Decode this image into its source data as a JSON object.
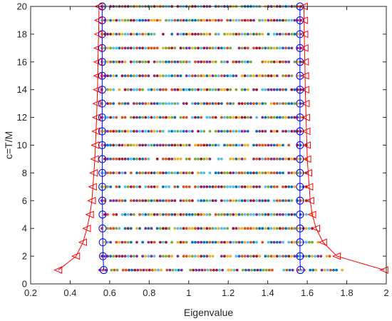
{
  "chart_data": {
    "type": "scatter",
    "title": "",
    "xlabel": "Eigenvalue",
    "ylabel": "c=T/M",
    "xlim": [
      0.2,
      2
    ],
    "ylim": [
      0,
      20
    ],
    "xticks": [
      "0.2",
      "0.4",
      "0.6",
      "0.8",
      "1",
      "1.2",
      "1.4",
      "1.6",
      "1.8",
      "2"
    ],
    "yticks": [
      "0",
      "2",
      "4",
      "6",
      "8",
      "10",
      "12",
      "14",
      "16",
      "18",
      "20"
    ],
    "grid": false,
    "legend": "none",
    "point_colors": [
      "#0072BD",
      "#D95319",
      "#EDB120",
      "#7E2F8E",
      "#77AC30",
      "#4DBEEE",
      "#A2142F"
    ],
    "series": [
      {
        "marker": "circle",
        "color": "#0000FF",
        "x": [
          0.57,
          0.566,
          0.565,
          0.564,
          0.564,
          0.563,
          0.563,
          0.563,
          0.563,
          0.562,
          0.562,
          0.562,
          0.562,
          0.562,
          0.562,
          0.562,
          0.562,
          0.562,
          0.562,
          0.562
        ],
        "y": [
          1,
          2,
          3,
          4,
          5,
          6,
          7,
          8,
          9,
          10,
          11,
          12,
          13,
          14,
          15,
          16,
          17,
          18,
          19,
          20
        ]
      },
      {
        "marker": "circle",
        "color": "#0000FF",
        "x": [
          1.565,
          1.563,
          1.563,
          1.563,
          1.563,
          1.563,
          1.563,
          1.563,
          1.563,
          1.563,
          1.563,
          1.563,
          1.563,
          1.563,
          1.563,
          1.563,
          1.563,
          1.563,
          1.563,
          1.563
        ],
        "y": [
          1,
          2,
          3,
          4,
          5,
          6,
          7,
          8,
          9,
          10,
          11,
          12,
          13,
          14,
          15,
          16,
          17,
          18,
          19,
          20
        ]
      },
      {
        "marker": "triangle-left",
        "color": "#FF0000",
        "x": [
          0.34,
          0.43,
          0.465,
          0.485,
          0.5,
          0.51,
          0.515,
          0.52,
          0.525,
          0.528,
          0.531,
          0.534,
          0.536,
          0.538,
          0.54,
          0.541,
          0.542,
          0.544,
          0.545,
          0.546
        ],
        "y": [
          1,
          2,
          3,
          4,
          5,
          6,
          7,
          8,
          9,
          10,
          11,
          12,
          13,
          14,
          15,
          16,
          17,
          18,
          19,
          20
        ]
      },
      {
        "marker": "triangle-left",
        "color": "#FF0000",
        "x": [
          1.99,
          1.75,
          1.68,
          1.645,
          1.625,
          1.615,
          1.61,
          1.605,
          1.6,
          1.598,
          1.596,
          1.594,
          1.592,
          1.59,
          1.589,
          1.588,
          1.586,
          1.585,
          1.584,
          1.583
        ],
        "y": [
          1,
          2,
          3,
          4,
          5,
          6,
          7,
          8,
          9,
          10,
          11,
          12,
          13,
          14,
          15,
          16,
          17,
          18,
          19,
          20
        ]
      },
      {
        "marker": "dot",
        "color": "multicolor",
        "rows": [
          {
            "y": 1,
            "x_min": 0.55,
            "x_max": 1.8
          },
          {
            "y": 2,
            "x_min": 0.56,
            "x_max": 1.72
          },
          {
            "y": 3,
            "x_min": 0.56,
            "x_max": 1.68
          },
          {
            "y": 4,
            "x_min": 0.56,
            "x_max": 1.65
          },
          {
            "y": 5,
            "x_min": 0.56,
            "x_max": 1.63
          },
          {
            "y": 6,
            "x_min": 0.56,
            "x_max": 1.62
          },
          {
            "y": 7,
            "x_min": 0.56,
            "x_max": 1.61
          },
          {
            "y": 8,
            "x_min": 0.56,
            "x_max": 1.6
          },
          {
            "y": 9,
            "x_min": 0.56,
            "x_max": 1.6
          },
          {
            "y": 10,
            "x_min": 0.56,
            "x_max": 1.6
          },
          {
            "y": 11,
            "x_min": 0.56,
            "x_max": 1.59
          },
          {
            "y": 12,
            "x_min": 0.56,
            "x_max": 1.59
          },
          {
            "y": 13,
            "x_min": 0.56,
            "x_max": 1.59
          },
          {
            "y": 14,
            "x_min": 0.56,
            "x_max": 1.59
          },
          {
            "y": 15,
            "x_min": 0.56,
            "x_max": 1.59
          },
          {
            "y": 16,
            "x_min": 0.56,
            "x_max": 1.59
          },
          {
            "y": 17,
            "x_min": 0.56,
            "x_max": 1.58
          },
          {
            "y": 18,
            "x_min": 0.56,
            "x_max": 1.58
          },
          {
            "y": 19,
            "x_min": 0.56,
            "x_max": 1.58
          },
          {
            "y": 20,
            "x_min": 0.56,
            "x_max": 1.58
          }
        ]
      }
    ]
  }
}
